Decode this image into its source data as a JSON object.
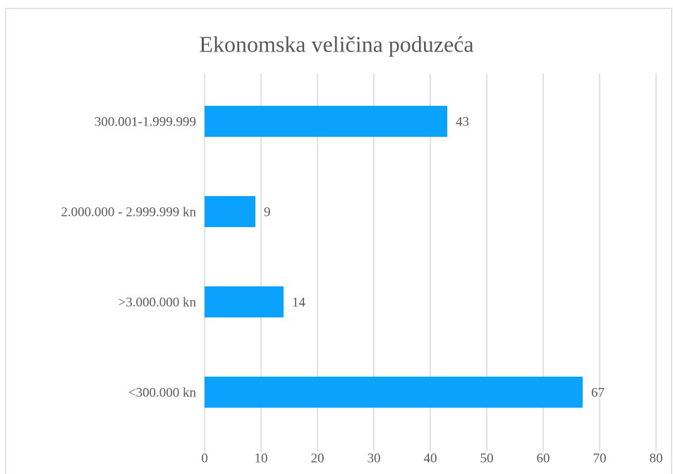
{
  "chart_data": {
    "type": "bar",
    "orientation": "horizontal",
    "title": "Ekonomska veličina poduzeća",
    "categories": [
      "300.001-1.999.999",
      "2.000.000 - 2.999.999 kn",
      ">3.000.000 kn",
      "<300.000 kn"
    ],
    "values": [
      43,
      9,
      14,
      67
    ],
    "color": "#0aa2fa",
    "xlim": [
      0,
      80
    ],
    "xticks": [
      0,
      10,
      20,
      30,
      40,
      50,
      60,
      70,
      80
    ],
    "grid": true
  }
}
